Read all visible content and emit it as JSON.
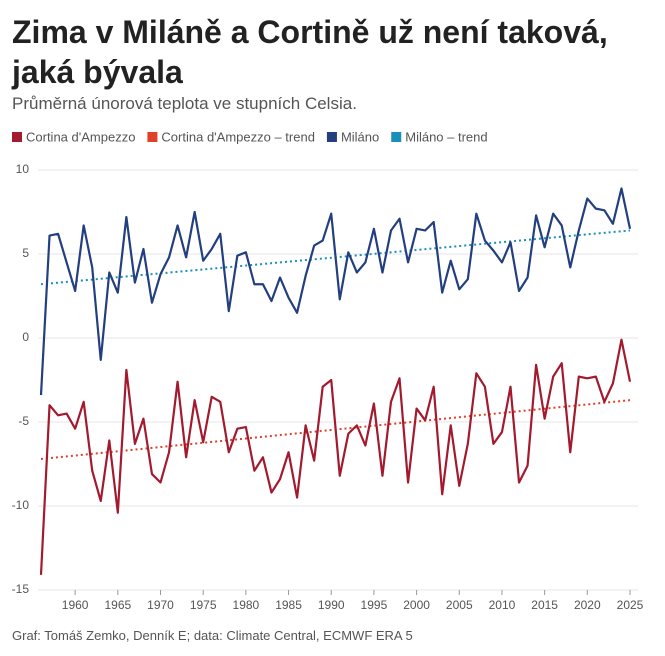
{
  "chart_data": {
    "type": "line",
    "title": "Zima v Miláně a Cortině už není taková, jaká bývala",
    "subtitle": "Průměrná únorová teplota ve stupních Celsia.",
    "source": "Graf: Tomáš Zemko, Denník E; data: Climate Central, ECMWF ERA 5",
    "x": [
      1956,
      1957,
      1958,
      1959,
      1960,
      1961,
      1962,
      1963,
      1964,
      1965,
      1966,
      1967,
      1968,
      1969,
      1970,
      1971,
      1972,
      1973,
      1974,
      1975,
      1976,
      1977,
      1978,
      1979,
      1980,
      1981,
      1982,
      1983,
      1984,
      1985,
      1986,
      1987,
      1988,
      1989,
      1990,
      1991,
      1992,
      1993,
      1994,
      1995,
      1996,
      1997,
      1998,
      1999,
      2000,
      2001,
      2002,
      2003,
      2004,
      2005,
      2006,
      2007,
      2008,
      2009,
      2010,
      2011,
      2012,
      2013,
      2014,
      2015,
      2016,
      2017,
      2018,
      2019,
      2020,
      2021,
      2022,
      2023,
      2024,
      2025
    ],
    "series": [
      {
        "name": "Cortina d'Ampezzo",
        "color": "#a31a2f",
        "values": [
          -14.1,
          -4.0,
          -4.6,
          -4.5,
          -5.4,
          -3.8,
          -7.9,
          -9.7,
          -6.1,
          -10.4,
          -1.9,
          -6.3,
          -4.8,
          -8.1,
          -8.6,
          -6.8,
          -2.6,
          -7.1,
          -3.7,
          -6.2,
          -3.5,
          -3.8,
          -6.8,
          -5.4,
          -5.3,
          -7.9,
          -7.1,
          -9.2,
          -8.4,
          -6.8,
          -9.5,
          -5.2,
          -7.3,
          -2.9,
          -2.5,
          -8.2,
          -5.7,
          -5.2,
          -6.4,
          -3.9,
          -8.2,
          -3.8,
          -2.4,
          -8.6,
          -4.2,
          -4.9,
          -2.9,
          -9.3,
          -5.2,
          -8.8,
          -6.3,
          -2.1,
          -2.9,
          -6.3,
          -5.6,
          -2.9,
          -8.6,
          -7.6,
          -1.6,
          -4.8,
          -2.3,
          -1.5,
          -6.8,
          -2.3,
          -2.4,
          -2.3,
          -3.8,
          -2.7,
          -0.1,
          -2.6
        ]
      },
      {
        "name": "Cortina d'Ampezzo – trend",
        "color": "#e0402a",
        "dashed": true,
        "x": [
          1956,
          2025
        ],
        "values": [
          -7.2,
          -3.7
        ]
      },
      {
        "name": "Miláno",
        "color": "#233f7f",
        "values": [
          -3.4,
          6.1,
          6.2,
          4.5,
          2.8,
          6.7,
          4.2,
          -1.3,
          3.9,
          2.7,
          7.2,
          3.3,
          5.3,
          2.1,
          3.8,
          4.8,
          6.7,
          4.8,
          7.5,
          4.6,
          5.3,
          6.2,
          1.6,
          4.9,
          5.1,
          3.2,
          3.2,
          2.2,
          3.6,
          2.4,
          1.5,
          3.7,
          5.5,
          5.8,
          7.4,
          2.3,
          5.1,
          3.9,
          4.5,
          6.5,
          3.9,
          6.4,
          7.1,
          4.5,
          6.5,
          6.4,
          6.9,
          2.7,
          4.6,
          2.9,
          3.5,
          7.4,
          5.8,
          5.2,
          4.5,
          5.7,
          2.8,
          3.6,
          7.3,
          5.4,
          7.4,
          6.7,
          4.2,
          6.4,
          8.3,
          7.7,
          7.6,
          6.8,
          8.9,
          6.5
        ]
      },
      {
        "name": "Miláno – trend",
        "color": "#1a8fba",
        "dashed": true,
        "x": [
          1956,
          2025
        ],
        "values": [
          3.2,
          6.4
        ]
      }
    ],
    "xlim": [
      1956,
      2025
    ],
    "xticks": [
      1960,
      1965,
      1970,
      1975,
      1980,
      1985,
      1990,
      1995,
      2000,
      2005,
      2010,
      2015,
      2020,
      2025
    ],
    "ylim": [
      -15,
      10
    ],
    "yticks": [
      10,
      5,
      0,
      -5,
      -10,
      -15
    ],
    "grid": true
  }
}
